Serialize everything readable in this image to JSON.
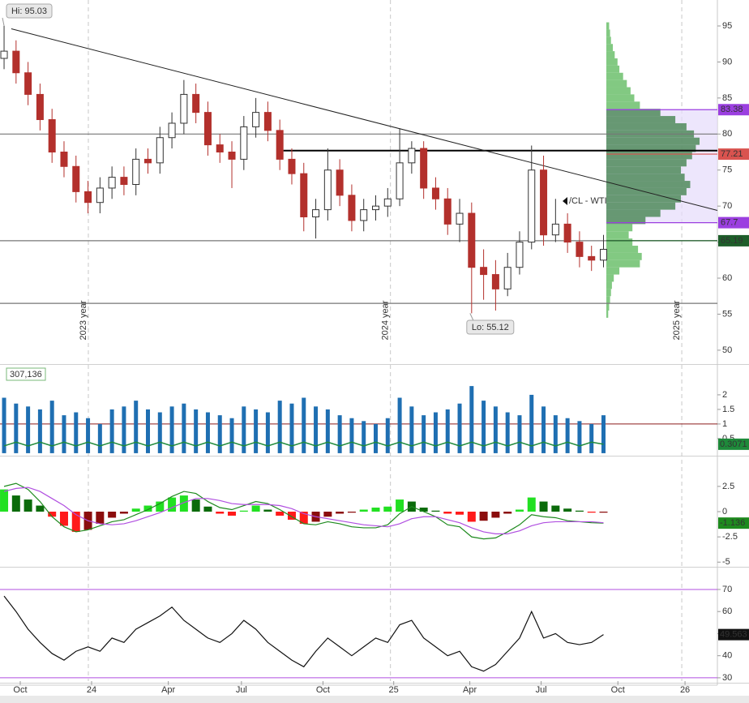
{
  "chart_data": [
    {
      "type": "candlestick",
      "open": [
        90.5,
        91.5,
        88.5,
        85.5,
        82.0,
        77.5,
        75.5,
        72.0,
        70.5,
        72.5,
        74.0,
        73.0,
        76.5,
        76.0,
        79.5,
        81.5,
        85.5,
        83.0,
        78.5,
        77.5,
        76.5,
        81.0,
        83.0,
        80.5,
        76.5,
        74.5,
        68.5,
        69.5,
        75.0,
        71.5,
        68.0,
        69.5,
        70.0,
        71.0,
        76.0,
        78.0,
        72.5,
        71.0,
        67.5,
        69.0,
        61.5,
        60.5,
        58.5,
        61.5,
        65.0,
        75.0,
        66.0,
        67.5,
        65.0,
        63.0,
        62.5
      ],
      "high": [
        95.03,
        93.0,
        90.0,
        87.0,
        83.5,
        79.0,
        77.0,
        73.5,
        74.0,
        75.5,
        75.5,
        78.0,
        78.0,
        81.0,
        83.0,
        87.5,
        87.0,
        84.5,
        80.0,
        79.0,
        82.5,
        85.0,
        84.5,
        82.0,
        78.0,
        76.0,
        71.0,
        78.0,
        76.5,
        73.0,
        71.0,
        71.5,
        72.5,
        80.8,
        79.0,
        79.0,
        74.0,
        72.5,
        71.0,
        70.5,
        64.0,
        62.5,
        63.5,
        66.5,
        78.4,
        77.0,
        71.0,
        69.0,
        66.5,
        64.5,
        66.0
      ],
      "low": [
        89.0,
        87.0,
        84.0,
        80.5,
        76.0,
        74.0,
        70.5,
        69.0,
        69.0,
        71.0,
        71.5,
        71.5,
        74.5,
        74.5,
        78.0,
        80.0,
        81.5,
        77.0,
        76.0,
        72.5,
        75.0,
        79.5,
        79.0,
        75.0,
        73.0,
        66.5,
        65.5,
        68.0,
        70.0,
        66.5,
        66.5,
        68.0,
        68.5,
        70.0,
        74.5,
        71.0,
        69.5,
        66.0,
        65.0,
        55.12,
        57.0,
        55.5,
        57.5,
        60.5,
        64.0,
        64.5,
        65.0,
        63.5,
        61.5,
        61.0,
        61.5
      ],
      "close": [
        91.5,
        88.5,
        85.5,
        82.0,
        77.5,
        75.5,
        72.0,
        70.5,
        72.5,
        74.0,
        73.0,
        76.5,
        76.0,
        79.5,
        81.5,
        85.5,
        83.0,
        78.5,
        77.5,
        76.5,
        81.0,
        83.0,
        80.5,
        76.5,
        74.5,
        68.5,
        69.5,
        75.0,
        71.5,
        68.0,
        69.5,
        70.0,
        71.0,
        76.0,
        78.0,
        72.5,
        71.0,
        67.5,
        69.0,
        61.5,
        60.5,
        58.5,
        61.5,
        65.0,
        75.0,
        66.0,
        67.5,
        65.0,
        63.0,
        62.5,
        64.0
      ],
      "up_color": "#ffffff",
      "down_color": "#b3302c",
      "outline_color": "#333333",
      "ylim": [
        48.3,
        98.6
      ],
      "yticks": [
        50,
        55,
        60,
        65,
        70,
        75,
        80,
        85,
        90,
        95
      ],
      "xlim": [
        -0.34,
        59.5
      ],
      "xticks": [
        {
          "value": 1.35,
          "label": "Oct"
        },
        {
          "value": 7.3,
          "label": "24"
        },
        {
          "value": 13.7,
          "label": "Apr"
        },
        {
          "value": 19.8,
          "label": "Jul"
        },
        {
          "value": 26.6,
          "label": "Oct"
        },
        {
          "value": 32.5,
          "label": "25"
        },
        {
          "value": 38.85,
          "label": "Apr"
        },
        {
          "value": 44.8,
          "label": "Jul"
        },
        {
          "value": 51.2,
          "label": "Oct"
        },
        {
          "value": 56.8,
          "label": "26"
        }
      ],
      "year_labels": [
        "2023 year",
        "2024 year",
        "2025 year"
      ],
      "hi_label": "Hi: 95.03",
      "lo_label": "Lo: 55.12",
      "symbol_label": "/CL - WTI",
      "hlines": [
        80,
        65.19,
        56.5
      ],
      "resistance": {
        "value": 77.7,
        "from": 23.3
      },
      "trendline": [
        [
          0.6,
          94.6
        ],
        [
          59.5,
          69.4
        ]
      ],
      "price_levels": [
        {
          "value": 83.38,
          "color": "#9b3fe0"
        },
        {
          "value": 77.21,
          "color": "#d9534f"
        },
        {
          "value": 67.7,
          "color": "#9b3fe0"
        },
        {
          "value": 65.19,
          "color": "#1e5e2a"
        }
      ],
      "volume_profile": {
        "levels": [
          55,
          56,
          57,
          58,
          59,
          60,
          61,
          62,
          63,
          64,
          65,
          66,
          67,
          68,
          69,
          70,
          71,
          72,
          73,
          74,
          75,
          76,
          77,
          78,
          79,
          80,
          81,
          82,
          83,
          84,
          85,
          86,
          87,
          88,
          89,
          90,
          91,
          92,
          93,
          94,
          95
        ],
        "values": [
          2,
          3,
          4,
          5,
          6,
          8,
          14,
          36,
          38,
          34,
          28,
          24,
          28,
          42,
          58,
          74,
          80,
          86,
          90,
          84,
          80,
          86,
          92,
          96,
          100,
          94,
          86,
          74,
          58,
          36,
          30,
          26,
          22,
          18,
          14,
          12,
          9,
          7,
          5,
          4,
          3
        ],
        "color": "#6cbf6c",
        "value_area_color": "#4f8a5a",
        "value_area_fill": "#e6dcfb"
      }
    },
    {
      "type": "bar",
      "label": "307,136",
      "values": [
        1.9,
        1.7,
        1.6,
        1.5,
        1.8,
        1.3,
        1.4,
        1.2,
        1.0,
        1.5,
        1.6,
        1.8,
        1.5,
        1.4,
        1.6,
        1.7,
        1.5,
        1.4,
        1.3,
        1.2,
        1.6,
        1.5,
        1.4,
        1.8,
        1.7,
        1.9,
        1.6,
        1.5,
        1.3,
        1.2,
        1.1,
        1.0,
        1.2,
        1.9,
        1.6,
        1.3,
        1.4,
        1.5,
        1.7,
        2.3,
        1.8,
        1.6,
        1.4,
        1.3,
        2.0,
        1.6,
        1.3,
        1.2,
        1.1,
        1.0,
        1.3
      ],
      "color": "#1f6fb2",
      "ma": [
        0.25,
        0.38,
        0.25,
        0.38,
        0.25,
        0.38,
        0.25,
        0.38,
        0.25,
        0.38,
        0.25,
        0.38,
        0.25,
        0.38,
        0.25,
        0.38,
        0.25,
        0.38,
        0.25,
        0.38,
        0.25,
        0.38,
        0.25,
        0.38,
        0.25,
        0.38,
        0.25,
        0.38,
        0.25,
        0.38,
        0.25,
        0.38,
        0.25,
        0.38,
        0.25,
        0.38,
        0.25,
        0.38,
        0.25,
        0.38,
        0.25,
        0.38,
        0.25,
        0.38,
        0.25,
        0.38,
        0.25,
        0.38,
        0.25,
        0.38,
        0.3071
      ],
      "ma_color": "#1e8a3a",
      "ref_line": 1,
      "ref_color": "#8b1a1a",
      "ylim": [
        -0.03,
        2.97
      ],
      "yticks": [
        0.5,
        1,
        1.5,
        2
      ]
    },
    {
      "type": "macd",
      "values": [
        2.2,
        1.6,
        1.2,
        0.6,
        -0.5,
        -1.4,
        -2.0,
        -1.8,
        -1.2,
        -0.6,
        -0.2,
        0.3,
        0.6,
        1.0,
        1.4,
        1.6,
        1.2,
        0.5,
        -0.2,
        -0.4,
        0.1,
        0.6,
        0.2,
        -0.4,
        -0.8,
        -1.2,
        -1.0,
        -0.5,
        -0.2,
        -0.1,
        0.2,
        0.4,
        0.5,
        1.2,
        1.0,
        0.4,
        0.1,
        -0.2,
        -0.3,
        -1.0,
        -0.9,
        -0.6,
        -0.2,
        0.2,
        1.4,
        1.0,
        0.6,
        0.3,
        0.1,
        -0.1,
        -0.1
      ],
      "colors": {
        "pos_up": "#22e022",
        "pos_down": "#0b6b0b",
        "neg_down": "#ff1a1a",
        "neg_up": "#8b0d0d"
      },
      "series": [
        {
          "color": "#1e8a1e",
          "values": [
            2.5,
            2.8,
            2.2,
            1.0,
            -0.5,
            -1.5,
            -2.0,
            -1.8,
            -1.4,
            -1.0,
            -0.8,
            -0.3,
            0.2,
            0.8,
            1.5,
            2.0,
            1.8,
            1.0,
            0.4,
            0.2,
            0.6,
            1.0,
            0.8,
            0.2,
            -0.5,
            -1.2,
            -1.3,
            -1.0,
            -1.2,
            -1.5,
            -1.6,
            -1.6,
            -1.3,
            -0.2,
            0.5,
            0.0,
            -0.5,
            -1.3,
            -1.5,
            -2.5,
            -2.7,
            -2.6,
            -2.0,
            -1.3,
            -0.3,
            -0.5,
            -0.6,
            -0.9,
            -1.0,
            -1.1,
            -1.136
          ]
        },
        {
          "color": "#b04fe0",
          "values": [
            2.0,
            2.3,
            2.4,
            2.0,
            1.3,
            0.6,
            -0.3,
            -0.9,
            -1.2,
            -1.3,
            -1.2,
            -0.9,
            -0.5,
            -0.1,
            0.4,
            0.9,
            1.3,
            1.3,
            1.1,
            0.8,
            0.7,
            0.7,
            0.7,
            0.6,
            0.3,
            -0.2,
            -0.5,
            -0.7,
            -0.9,
            -1.1,
            -1.3,
            -1.4,
            -1.5,
            -1.2,
            -0.7,
            -0.5,
            -0.5,
            -0.8,
            -1.1,
            -1.6,
            -2.0,
            -2.2,
            -2.2,
            -1.9,
            -1.4,
            -1.1,
            -1.0,
            -1.0,
            -1.0,
            -1.0,
            -1.1
          ]
        }
      ],
      "ylim": [
        -5.3,
        5.3
      ],
      "yticks": [
        -5,
        -2.5,
        0,
        2.5
      ]
    },
    {
      "type": "line",
      "values": [
        67,
        60,
        52,
        46,
        41,
        38,
        42,
        44,
        42,
        48,
        46,
        52,
        55,
        58,
        62,
        56,
        52,
        48,
        46,
        50,
        56,
        52,
        46,
        42,
        38,
        35,
        42,
        48,
        44,
        40,
        44,
        48,
        46,
        54,
        56,
        48,
        44,
        40,
        42,
        35,
        33,
        36,
        42,
        48,
        60,
        48,
        50,
        46,
        45,
        46,
        49.563
      ],
      "color": "#111111",
      "bands": [
        30,
        70
      ],
      "band_color": "#b04fe0",
      "ylim": [
        28.5,
        78.8
      ],
      "yticks": [
        30,
        40,
        50,
        60,
        70
      ]
    }
  ]
}
